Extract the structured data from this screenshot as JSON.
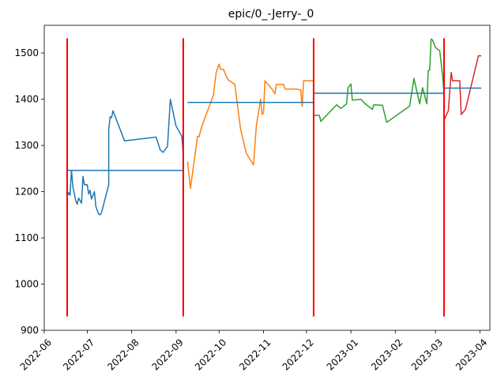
{
  "chart_data": {
    "type": "line",
    "title": "epic/0_-Jerry-_0",
    "xlabel": "",
    "ylabel": "",
    "x_range": [
      "2022-06-01",
      "2023-04-08"
    ],
    "ylim": [
      900,
      1560
    ],
    "grid": false,
    "legend": "none",
    "y_ticks": [
      900,
      1000,
      1100,
      1200,
      1300,
      1400,
      1500
    ],
    "x_ticks": [
      "2022-06-01",
      "2022-07-01",
      "2022-08-01",
      "2022-09-01",
      "2022-10-01",
      "2022-11-01",
      "2022-12-01",
      "2023-01-01",
      "2023-02-01",
      "2023-03-01",
      "2023-04-01"
    ],
    "x_tick_labels": [
      "2022-06",
      "2022-07",
      "2022-08",
      "2022-09",
      "2022-10",
      "2022-11",
      "2022-12",
      "2023-01",
      "2023-02",
      "2023-03",
      "2023-04"
    ],
    "vlines": {
      "color": "#ff0000",
      "dates": [
        "2022-06-17",
        "2022-09-06",
        "2022-12-06",
        "2023-03-07"
      ],
      "ymin": 930,
      "ymax": 1532
    },
    "series": [
      {
        "color": "#1f77b4",
        "points": [
          [
            "2022-06-17",
            1190
          ],
          [
            "2022-06-18",
            1198
          ],
          [
            "2022-06-19",
            1192
          ],
          [
            "2022-06-20",
            1246
          ],
          [
            "2022-06-21",
            1210
          ],
          [
            "2022-06-23",
            1180
          ],
          [
            "2022-06-24",
            1173
          ],
          [
            "2022-06-25",
            1186
          ],
          [
            "2022-06-27",
            1175
          ],
          [
            "2022-06-28",
            1233
          ],
          [
            "2022-06-29",
            1215
          ],
          [
            "2022-07-01",
            1215
          ],
          [
            "2022-07-02",
            1195
          ],
          [
            "2022-07-03",
            1203
          ],
          [
            "2022-07-04",
            1184
          ],
          [
            "2022-07-06",
            1200
          ],
          [
            "2022-07-07",
            1168
          ],
          [
            "2022-07-09",
            1151
          ],
          [
            "2022-07-10",
            1150
          ],
          [
            "2022-07-11",
            1155
          ],
          [
            "2022-07-16",
            1215
          ],
          [
            "2022-07-16",
            1335
          ],
          [
            "2022-07-17",
            1362
          ],
          [
            "2022-07-18",
            1360
          ],
          [
            "2022-07-19",
            1375
          ],
          [
            "2022-07-27",
            1310
          ],
          [
            "2022-08-18",
            1318
          ],
          [
            "2022-08-21",
            1290
          ],
          [
            "2022-08-23",
            1285
          ],
          [
            "2022-08-26",
            1298
          ],
          [
            "2022-08-28",
            1400
          ],
          [
            "2022-09-01",
            1342
          ],
          [
            "2022-09-05",
            1320
          ],
          [
            "2022-09-06",
            1282
          ]
        ],
        "mean": 1246,
        "mean_range": [
          "2022-06-17",
          "2022-09-06"
        ]
      },
      {
        "color": "#ff7f0e",
        "points": [
          [
            "2022-09-09",
            1265
          ],
          [
            "2022-09-11",
            1207
          ],
          [
            "2022-09-16",
            1320
          ],
          [
            "2022-09-17",
            1319
          ],
          [
            "2022-09-19",
            1342
          ],
          [
            "2022-09-27",
            1408
          ],
          [
            "2022-09-29",
            1458
          ],
          [
            "2022-10-01",
            1476
          ],
          [
            "2022-10-02",
            1465
          ],
          [
            "2022-10-04",
            1465
          ],
          [
            "2022-10-07",
            1443
          ],
          [
            "2022-10-12",
            1432
          ],
          [
            "2022-10-16",
            1335
          ],
          [
            "2022-10-20",
            1283
          ],
          [
            "2022-10-25",
            1258
          ],
          [
            "2022-10-27",
            1342
          ],
          [
            "2022-10-30",
            1400
          ],
          [
            "2022-10-31",
            1367
          ],
          [
            "2022-11-01",
            1370
          ],
          [
            "2022-11-02",
            1440
          ],
          [
            "2022-11-07",
            1422
          ],
          [
            "2022-11-09",
            1412
          ],
          [
            "2022-11-10",
            1432
          ],
          [
            "2022-11-15",
            1432
          ],
          [
            "2022-11-16",
            1422
          ],
          [
            "2022-11-24",
            1422
          ],
          [
            "2022-11-27",
            1420
          ],
          [
            "2022-11-28",
            1384
          ],
          [
            "2022-11-29",
            1440
          ],
          [
            "2022-12-06",
            1440
          ]
        ],
        "mean": 1393,
        "mean_range": [
          "2022-09-09",
          "2022-12-06"
        ]
      },
      {
        "color": "#2ca02c",
        "points": [
          [
            "2022-12-06",
            1365
          ],
          [
            "2022-12-10",
            1365
          ],
          [
            "2022-12-11",
            1352
          ],
          [
            "2022-12-22",
            1388
          ],
          [
            "2022-12-25",
            1380
          ],
          [
            "2022-12-29",
            1390
          ],
          [
            "2022-12-30",
            1425
          ],
          [
            "2023-01-01",
            1433
          ],
          [
            "2023-01-02",
            1398
          ],
          [
            "2023-01-08",
            1400
          ],
          [
            "2023-01-11",
            1390
          ],
          [
            "2023-01-16",
            1378
          ],
          [
            "2023-01-17",
            1388
          ],
          [
            "2023-01-23",
            1387
          ],
          [
            "2023-01-26",
            1350
          ],
          [
            "2023-02-11",
            1385
          ],
          [
            "2023-02-14",
            1445
          ],
          [
            "2023-02-18",
            1390
          ],
          [
            "2023-02-20",
            1425
          ],
          [
            "2023-02-23",
            1390
          ],
          [
            "2023-02-24",
            1462
          ],
          [
            "2023-02-25",
            1463
          ],
          [
            "2023-02-26",
            1530
          ],
          [
            "2023-02-27",
            1528
          ],
          [
            "2023-03-01",
            1512
          ],
          [
            "2023-03-04",
            1505
          ],
          [
            "2023-03-06",
            1450
          ],
          [
            "2023-03-07",
            1413
          ]
        ],
        "mean": 1413,
        "mean_range": [
          "2022-12-06",
          "2023-03-07"
        ]
      },
      {
        "color": "#d62728",
        "points": [
          [
            "2023-03-07",
            1355
          ],
          [
            "2023-03-10",
            1375
          ],
          [
            "2023-03-12",
            1458
          ],
          [
            "2023-03-13",
            1440
          ],
          [
            "2023-03-18",
            1440
          ],
          [
            "2023-03-19",
            1367
          ],
          [
            "2023-03-22",
            1378
          ],
          [
            "2023-03-31",
            1494
          ],
          [
            "2023-04-02",
            1494
          ]
        ],
        "mean": 1424,
        "mean_range": [
          "2023-03-07",
          "2023-04-02"
        ]
      }
    ],
    "mean_line_color": "#1f77b4"
  }
}
